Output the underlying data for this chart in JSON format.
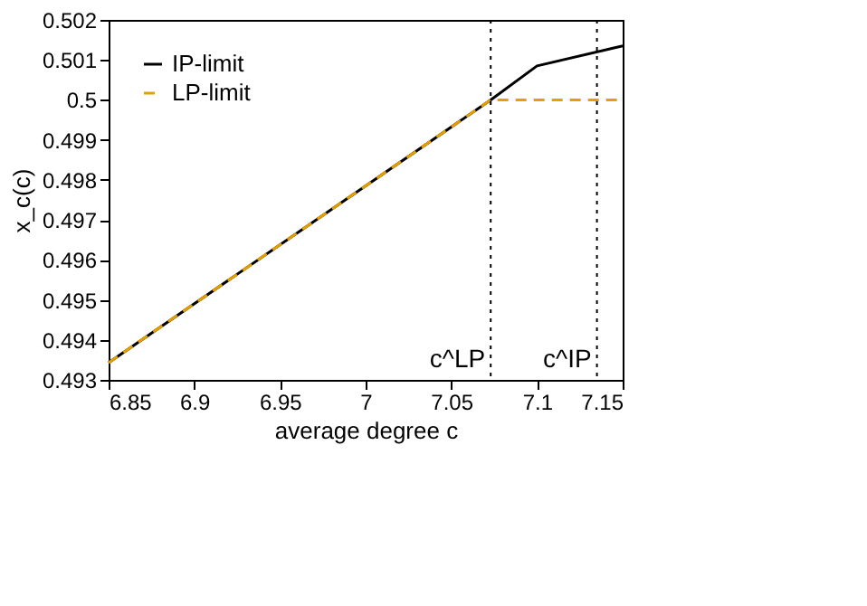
{
  "chart_data": {
    "type": "line",
    "xlabel": "average degree c",
    "ylabel": "x_c(c)",
    "xlim": [
      6.85,
      7.15
    ],
    "ylim": [
      0.493,
      0.502
    ],
    "xticks": [
      6.85,
      6.9,
      6.95,
      7,
      7.05,
      7.1,
      7.15
    ],
    "yticks": [
      0.493,
      0.494,
      0.495,
      0.496,
      0.497,
      0.498,
      0.499,
      0.5,
      0.501,
      0.502
    ],
    "series": [
      {
        "name": "IP-limit",
        "color": "#000000",
        "line_style": "solid",
        "x": [
          6.85,
          7.073,
          7.1,
          7.15
        ],
        "values": [
          0.49343,
          0.5,
          0.50085,
          0.50135
        ]
      },
      {
        "name": "LP-limit",
        "color": "#e69f00",
        "line_style": "dashed",
        "x": [
          6.85,
          7.073,
          7.15
        ],
        "values": [
          0.49343,
          0.5,
          0.5
        ]
      }
    ],
    "ref_lines": [
      {
        "axis": "x",
        "value": 7.073,
        "label": "c^LP",
        "line_style": "dotted",
        "color": "#000000"
      },
      {
        "axis": "x",
        "value": 7.135,
        "label": "c^IP",
        "line_style": "dotted",
        "color": "#000000"
      }
    ],
    "grid": false,
    "legend": "top left"
  }
}
